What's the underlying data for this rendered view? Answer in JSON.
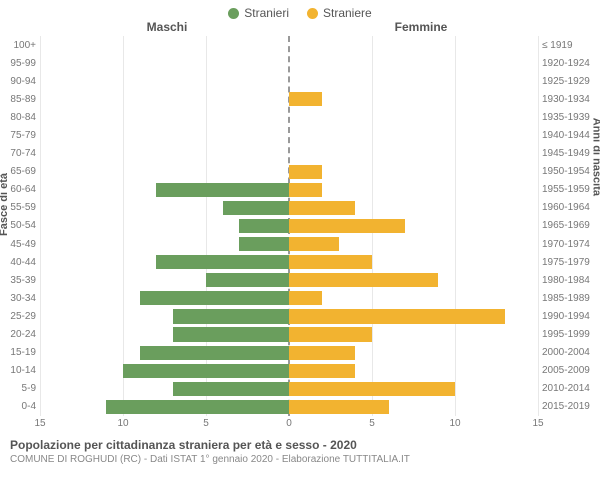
{
  "chart": {
    "type": "population-pyramid",
    "legend": {
      "male": {
        "label": "Stranieri",
        "color": "#6a9e5d"
      },
      "female": {
        "label": "Straniere",
        "color": "#f2b330"
      }
    },
    "headers": {
      "left": "Maschi",
      "right": "Femmine"
    },
    "y_axis_left_label": "Fasce di età",
    "y_axis_right_label": "Anni di nascita",
    "x_axis": {
      "max": 15,
      "ticks_left": [
        15,
        10,
        5,
        0
      ],
      "ticks_right": [
        0,
        5,
        10,
        15
      ]
    },
    "grid_color": "#e8e8e8",
    "center_line_color": "#999999",
    "background_color": "#ffffff",
    "bar_height_ratio": 0.78,
    "rows": [
      {
        "age": "100+",
        "birth": "≤ 1919",
        "male": 0,
        "female": 0
      },
      {
        "age": "95-99",
        "birth": "1920-1924",
        "male": 0,
        "female": 0
      },
      {
        "age": "90-94",
        "birth": "1925-1929",
        "male": 0,
        "female": 0
      },
      {
        "age": "85-89",
        "birth": "1930-1934",
        "male": 0,
        "female": 2
      },
      {
        "age": "80-84",
        "birth": "1935-1939",
        "male": 0,
        "female": 0
      },
      {
        "age": "75-79",
        "birth": "1940-1944",
        "male": 0,
        "female": 0
      },
      {
        "age": "70-74",
        "birth": "1945-1949",
        "male": 0,
        "female": 0
      },
      {
        "age": "65-69",
        "birth": "1950-1954",
        "male": 0,
        "female": 2
      },
      {
        "age": "60-64",
        "birth": "1955-1959",
        "male": 8,
        "female": 2
      },
      {
        "age": "55-59",
        "birth": "1960-1964",
        "male": 4,
        "female": 4
      },
      {
        "age": "50-54",
        "birth": "1965-1969",
        "male": 3,
        "female": 7
      },
      {
        "age": "45-49",
        "birth": "1970-1974",
        "male": 3,
        "female": 3
      },
      {
        "age": "40-44",
        "birth": "1975-1979",
        "male": 8,
        "female": 5
      },
      {
        "age": "35-39",
        "birth": "1980-1984",
        "male": 5,
        "female": 9
      },
      {
        "age": "30-34",
        "birth": "1985-1989",
        "male": 9,
        "female": 2
      },
      {
        "age": "25-29",
        "birth": "1990-1994",
        "male": 7,
        "female": 13
      },
      {
        "age": "20-24",
        "birth": "1995-1999",
        "male": 7,
        "female": 5
      },
      {
        "age": "15-19",
        "birth": "2000-2004",
        "male": 9,
        "female": 4
      },
      {
        "age": "10-14",
        "birth": "2005-2009",
        "male": 10,
        "female": 4
      },
      {
        "age": "5-9",
        "birth": "2010-2014",
        "male": 7,
        "female": 10
      },
      {
        "age": "0-4",
        "birth": "2015-2019",
        "male": 11,
        "female": 6
      }
    ],
    "footer": {
      "title": "Popolazione per cittadinanza straniera per età e sesso - 2020",
      "subtitle": "COMUNE DI ROGHUDI (RC) - Dati ISTAT 1° gennaio 2020 - Elaborazione TUTTITALIA.IT"
    }
  }
}
